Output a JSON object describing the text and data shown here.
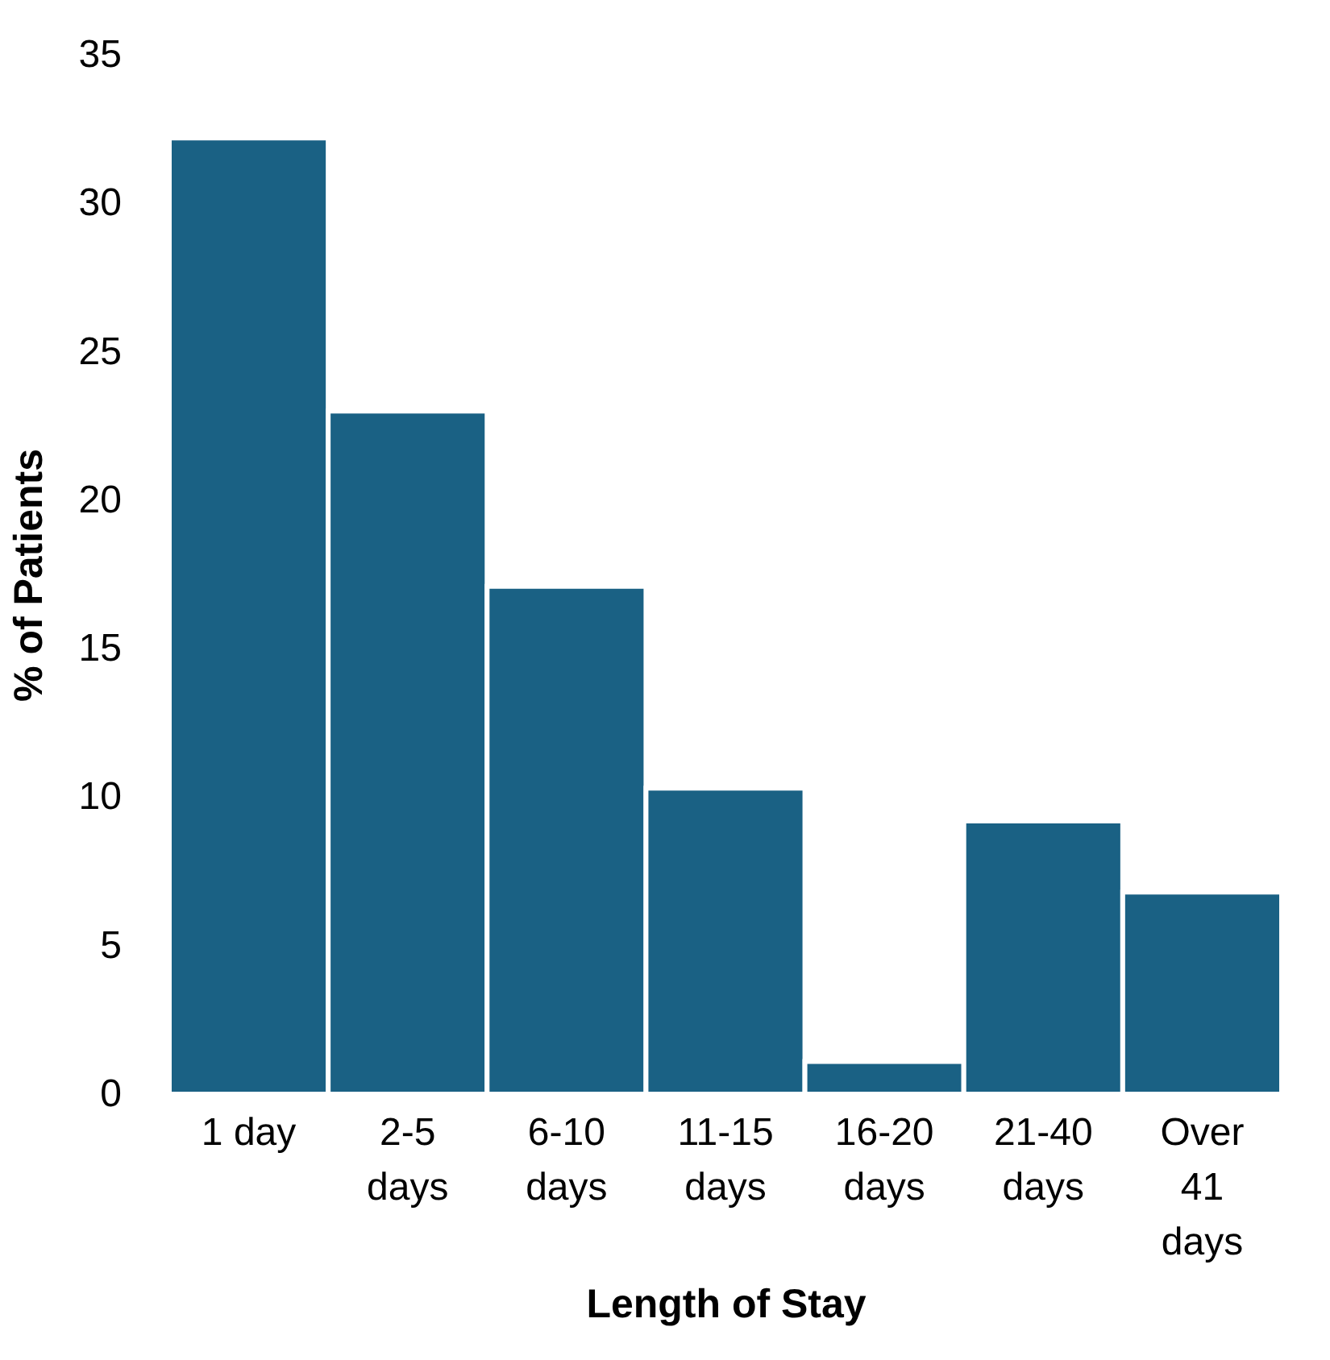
{
  "chart_data": {
    "type": "bar",
    "xlabel": "Length of Stay",
    "ylabel": "% of Patients",
    "categories": [
      "1 day",
      "2-5\ndays",
      "6-10\ndays",
      "11-15\ndays",
      "16-20\ndays",
      "21-40\ndays",
      "Over\n41\ndays"
    ],
    "values": [
      32.2,
      23.0,
      17.1,
      10.3,
      1.1,
      9.2,
      6.8
    ],
    "color": "#1a6184",
    "ylim": [
      0,
      35
    ],
    "yticks": [
      0,
      5,
      10,
      15,
      20,
      25,
      30,
      35
    ],
    "grid": false
  }
}
